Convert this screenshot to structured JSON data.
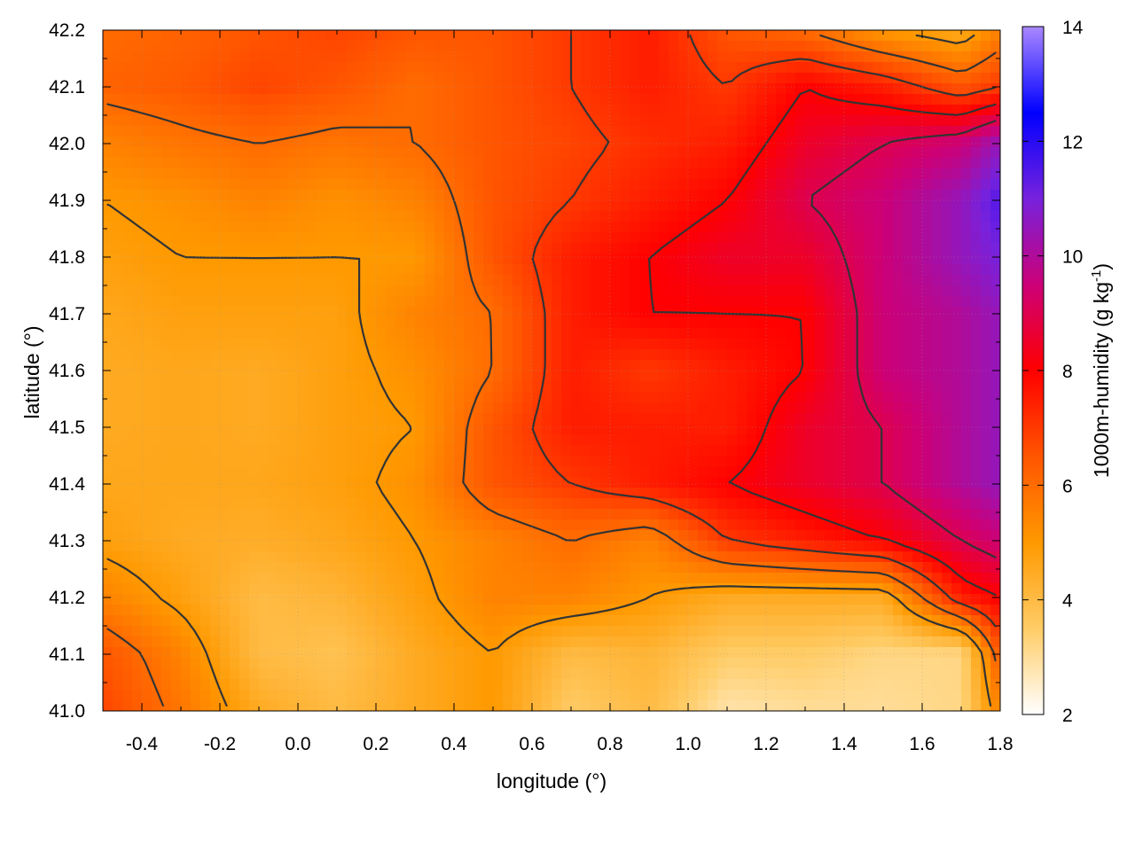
{
  "chart_data": {
    "type": "heatmap",
    "title": "",
    "xlabel": "longitude (°)",
    "ylabel": "latitude (°)",
    "colorbar_label": {
      "text": "1000m-humidity (g kg",
      "sup": "-1",
      "close": ")"
    },
    "xlim": [
      -0.5,
      1.8
    ],
    "ylim": [
      41.0,
      42.2
    ],
    "clim": [
      2,
      14
    ],
    "x_ticks": [
      "-0.4",
      "-0.2",
      "0.0",
      "0.2",
      "0.4",
      "0.6",
      "0.8",
      "1.0",
      "1.2",
      "1.4",
      "1.6",
      "1.8"
    ],
    "x_tick_values": [
      -0.4,
      -0.2,
      0.0,
      0.2,
      0.4,
      0.6,
      0.8,
      1.0,
      1.2,
      1.4,
      1.6,
      1.8
    ],
    "y_ticks": [
      "41.0",
      "41.1",
      "41.2",
      "41.3",
      "41.4",
      "41.5",
      "41.6",
      "41.7",
      "41.8",
      "41.9",
      "42.0",
      "42.1",
      "42.2"
    ],
    "y_tick_values": [
      41.0,
      41.1,
      41.2,
      41.3,
      41.4,
      41.5,
      41.6,
      41.7,
      41.8,
      41.9,
      42.0,
      42.1,
      42.2
    ],
    "colorbar_ticks": [
      "2",
      "4",
      "6",
      "8",
      "10",
      "12",
      "14"
    ],
    "colorbar_tick_values": [
      2,
      4,
      6,
      8,
      10,
      12,
      14
    ],
    "colormap": [
      "#ffffff",
      "#ffcc66",
      "#ff9900",
      "#ff5500",
      "#ff0000",
      "#cc0077",
      "#7722dd",
      "#0000ff",
      "#aa88ff"
    ],
    "grid": true,
    "contour_color": "#333333",
    "humidity_grid": {
      "lon": [
        -0.5,
        -0.3,
        -0.1,
        0.1,
        0.3,
        0.5,
        0.7,
        0.9,
        1.1,
        1.3,
        1.5,
        1.7,
        1.8
      ],
      "lat": [
        42.2,
        42.1,
        42.0,
        41.9,
        41.8,
        41.7,
        41.6,
        41.5,
        41.4,
        41.3,
        41.2,
        41.1,
        41.0
      ],
      "values": [
        [
          6.0,
          6.2,
          6.5,
          6.8,
          6.5,
          6.5,
          7.0,
          7.5,
          6.5,
          6.0,
          5.0,
          4.5,
          5.5
        ],
        [
          6.2,
          6.4,
          6.8,
          6.5,
          6.0,
          6.5,
          7.0,
          7.5,
          7.0,
          8.0,
          7.5,
          6.5,
          7.0
        ],
        [
          5.5,
          5.8,
          6.0,
          5.8,
          6.0,
          6.5,
          6.8,
          7.2,
          7.5,
          8.5,
          9.0,
          9.5,
          10.5
        ],
        [
          5.0,
          5.2,
          5.5,
          5.2,
          5.5,
          6.5,
          7.0,
          7.5,
          8.0,
          9.0,
          9.5,
          10.5,
          11.5
        ],
        [
          4.8,
          5.0,
          5.0,
          5.0,
          5.0,
          6.5,
          7.5,
          8.0,
          8.5,
          8.5,
          9.5,
          10.5,
          11.0
        ],
        [
          4.6,
          4.8,
          4.8,
          4.8,
          5.5,
          6.0,
          7.5,
          8.0,
          8.0,
          8.0,
          9.5,
          10.0,
          10.5
        ],
        [
          4.5,
          4.6,
          4.5,
          4.8,
          5.2,
          6.0,
          7.5,
          7.0,
          7.5,
          8.0,
          9.5,
          10.0,
          10.5
        ],
        [
          4.5,
          4.6,
          4.5,
          4.8,
          5.0,
          6.5,
          7.5,
          7.5,
          7.5,
          8.5,
          9.0,
          10.0,
          10.5
        ],
        [
          4.6,
          4.6,
          4.6,
          4.8,
          5.2,
          6.5,
          7.0,
          7.5,
          8.0,
          8.5,
          9.0,
          10.0,
          10.5
        ],
        [
          4.8,
          4.5,
          4.4,
          4.6,
          5.0,
          5.5,
          6.0,
          5.5,
          7.0,
          7.5,
          8.0,
          9.0,
          9.5
        ],
        [
          5.5,
          4.8,
          4.0,
          4.2,
          4.8,
          5.5,
          5.5,
          5.0,
          4.5,
          4.5,
          4.5,
          7.5,
          8.0
        ],
        [
          6.5,
          5.5,
          4.0,
          3.8,
          4.5,
          5.0,
          4.0,
          4.2,
          3.5,
          3.5,
          3.2,
          3.2,
          6.5
        ],
        [
          6.8,
          5.8,
          4.5,
          4.0,
          4.5,
          5.0,
          3.5,
          4.0,
          2.8,
          3.0,
          3.0,
          3.2,
          5.5
        ]
      ]
    },
    "contour_levels": [
      5,
      6,
      7,
      8,
      9
    ]
  }
}
